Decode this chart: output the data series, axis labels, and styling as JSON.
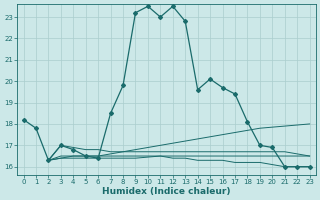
{
  "xlabel": "Humidex (Indice chaleur)",
  "xlim": [
    -0.5,
    23.5
  ],
  "ylim": [
    15.6,
    23.6
  ],
  "yticks": [
    16,
    17,
    18,
    19,
    20,
    21,
    22,
    23
  ],
  "xticks": [
    0,
    1,
    2,
    3,
    4,
    5,
    6,
    7,
    8,
    9,
    10,
    11,
    12,
    13,
    14,
    15,
    16,
    17,
    18,
    19,
    20,
    21,
    22,
    23
  ],
  "bg_color": "#cce8e8",
  "grid_color": "#aacece",
  "line_color": "#1a6b6b",
  "series": {
    "main": {
      "x": [
        0,
        1,
        2,
        3,
        4,
        5,
        6,
        7,
        8,
        9,
        10,
        11,
        12,
        13,
        14,
        15,
        16,
        17,
        18,
        19,
        20,
        21,
        22,
        23
      ],
      "y": [
        18.2,
        17.8,
        16.3,
        17.0,
        16.8,
        16.5,
        16.4,
        18.5,
        19.8,
        23.2,
        23.5,
        23.0,
        23.5,
        22.8,
        19.6,
        20.1,
        19.7,
        19.4,
        18.1,
        17.0,
        16.9,
        16.0,
        16.0,
        16.0
      ]
    },
    "line1": {
      "x": [
        2,
        3,
        4,
        5,
        6,
        7,
        8,
        9,
        10,
        11,
        12,
        13,
        14,
        15,
        16,
        17,
        18,
        19,
        20,
        21,
        22,
        23
      ],
      "y": [
        16.3,
        16.4,
        16.5,
        16.5,
        16.5,
        16.6,
        16.7,
        16.8,
        16.9,
        17.0,
        17.1,
        17.2,
        17.3,
        17.4,
        17.5,
        17.6,
        17.7,
        17.8,
        17.85,
        17.9,
        17.95,
        18.0
      ]
    },
    "line2": {
      "x": [
        2,
        3,
        4,
        5,
        6,
        7,
        8,
        9,
        10,
        11,
        12,
        13,
        14,
        15,
        16,
        17,
        18,
        19,
        20,
        21,
        22,
        23
      ],
      "y": [
        16.3,
        16.4,
        16.4,
        16.4,
        16.4,
        16.4,
        16.4,
        16.4,
        16.45,
        16.5,
        16.5,
        16.5,
        16.5,
        16.5,
        16.5,
        16.5,
        16.5,
        16.5,
        16.5,
        16.5,
        16.5,
        16.5
      ]
    },
    "line3": {
      "x": [
        2,
        3,
        4,
        5,
        6,
        7,
        8,
        9,
        10,
        11,
        12,
        13,
        14,
        15,
        16,
        17,
        18,
        19,
        20,
        21,
        22,
        23
      ],
      "y": [
        16.3,
        16.5,
        16.5,
        16.5,
        16.5,
        16.5,
        16.5,
        16.5,
        16.5,
        16.5,
        16.4,
        16.4,
        16.3,
        16.3,
        16.3,
        16.2,
        16.2,
        16.2,
        16.1,
        16.0,
        16.0,
        16.0
      ]
    },
    "line4": {
      "x": [
        2,
        3,
        4,
        5,
        6,
        7,
        8,
        9,
        10,
        11,
        12,
        13,
        14,
        15,
        16,
        17,
        18,
        19,
        20,
        21,
        22,
        23
      ],
      "y": [
        16.3,
        17.0,
        16.9,
        16.8,
        16.8,
        16.7,
        16.7,
        16.7,
        16.7,
        16.7,
        16.7,
        16.7,
        16.7,
        16.7,
        16.7,
        16.7,
        16.7,
        16.7,
        16.7,
        16.7,
        16.6,
        16.5
      ]
    }
  }
}
